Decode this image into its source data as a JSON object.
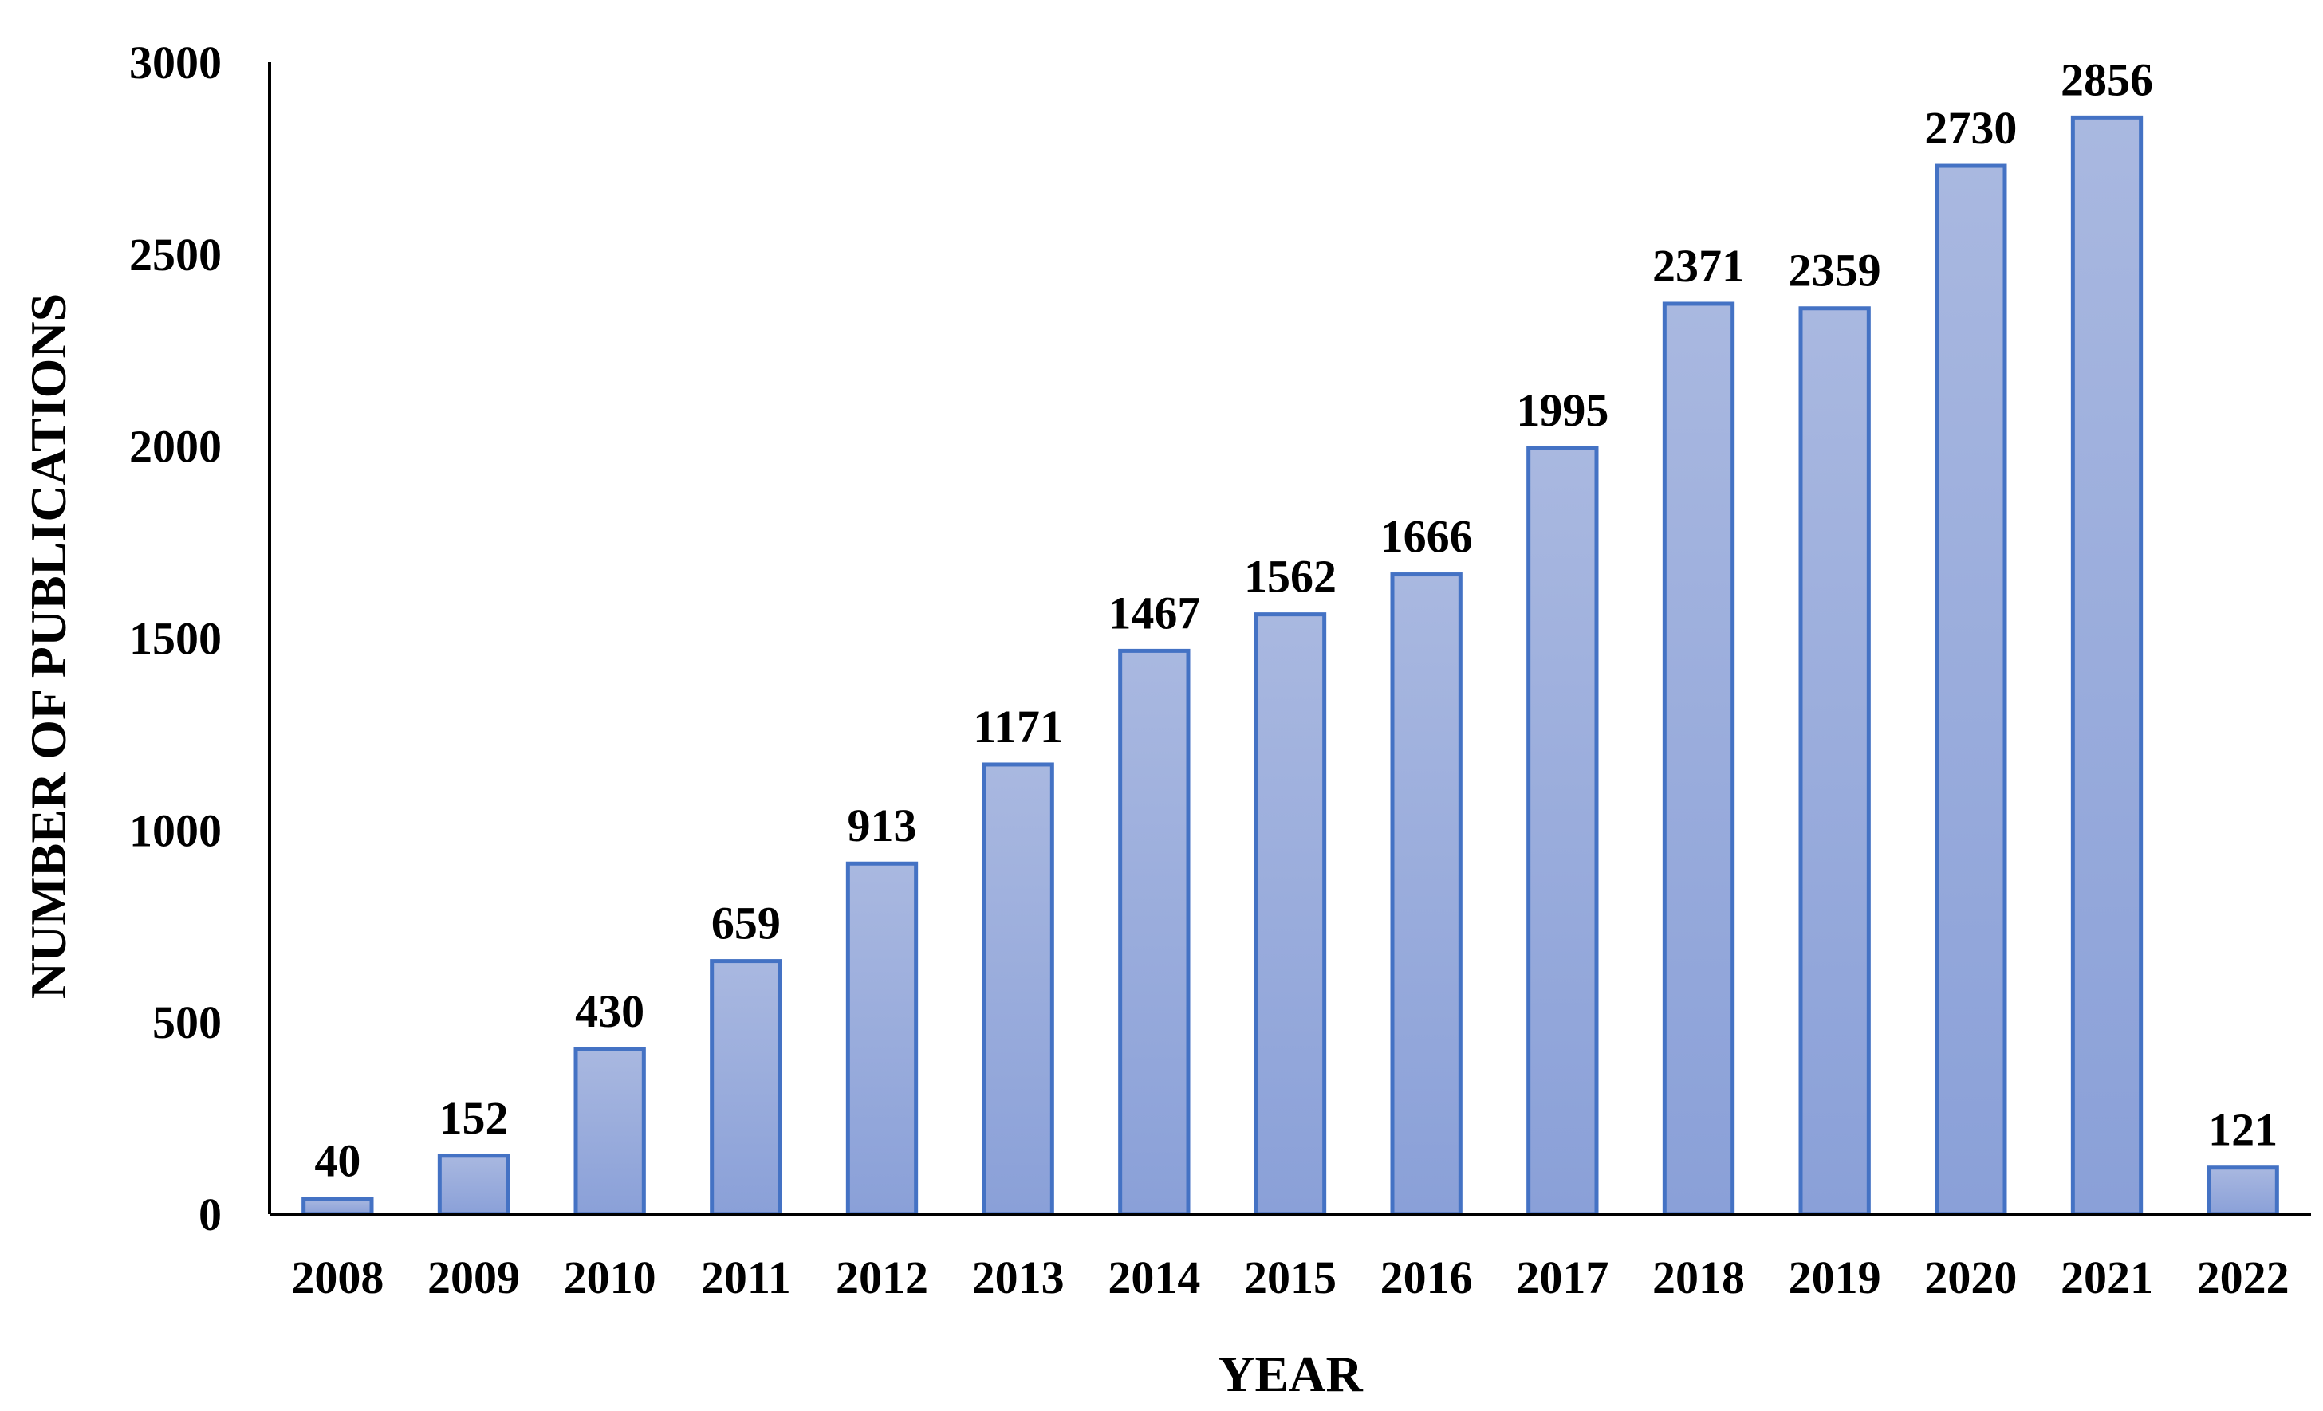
{
  "chart_data": {
    "type": "bar",
    "title": "",
    "xlabel": "YEAR",
    "ylabel": "NUMBER OF PUBLICATIONS",
    "ylim": [
      0,
      3000
    ],
    "yticks": [
      "0",
      "500",
      "1000",
      "1500",
      "2000",
      "2500",
      "3000"
    ],
    "ytick_values": [
      0,
      500,
      1000,
      1500,
      2000,
      2500,
      3000
    ],
    "categories": [
      "2008",
      "2009",
      "2010",
      "2011",
      "2012",
      "2013",
      "2014",
      "2015",
      "2016",
      "2017",
      "2018",
      "2019",
      "2020",
      "2021",
      "2022"
    ],
    "values": [
      40,
      152,
      430,
      659,
      913,
      1171,
      1467,
      1562,
      1666,
      1995,
      2371,
      2359,
      2730,
      2856,
      121
    ],
    "data_labels": [
      "40",
      "152",
      "430",
      "659",
      "913",
      "1171",
      "1467",
      "1562",
      "1666",
      "1995",
      "2371",
      "2359",
      "2730",
      "2856",
      "121"
    ],
    "grid": false,
    "legend": "none",
    "colors": {
      "bar_fill_top": "#a9b8e0",
      "bar_fill_bottom": "#8aa0d8",
      "bar_stroke": "#4472c4",
      "axis": "#000000",
      "text": "#000000"
    }
  }
}
